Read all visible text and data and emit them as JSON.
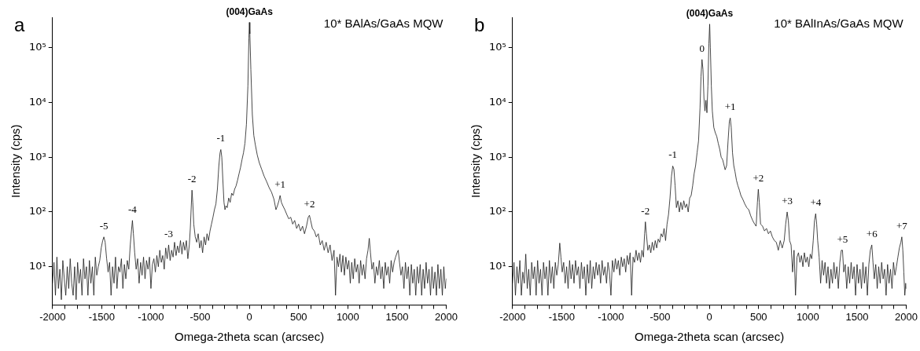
{
  "chart_data": [
    {
      "type": "line",
      "title": "a",
      "subtitle": "10* BAlAs/GaAs MQW",
      "xlabel": "Omega-2theta scan (arcsec)",
      "ylabel": "Intensity (cps)",
      "log": "y",
      "grid": false,
      "legend": false,
      "marker": "none",
      "line_style": "solid",
      "xlim": [
        -2000,
        2000
      ],
      "ylim": [
        2,
        360000
      ],
      "xticks": [
        -2000,
        {
          "value": -1875,
          "label": null
        },
        {
          "value": -1750,
          "label": null
        },
        {
          "value": -1625,
          "label": null
        },
        -1500,
        {
          "value": -1375,
          "label": null
        },
        {
          "value": -1250,
          "label": null
        },
        {
          "value": -1125,
          "label": null
        },
        -1000,
        {
          "value": -875,
          "label": null
        },
        {
          "value": -750,
          "label": null
        },
        {
          "value": -625,
          "label": null
        },
        -500,
        {
          "value": -375,
          "label": null
        },
        {
          "value": -250,
          "label": null
        },
        {
          "value": -125,
          "label": null
        },
        0,
        {
          "value": 125,
          "label": null
        },
        {
          "value": 250,
          "label": null
        },
        {
          "value": 375,
          "label": null
        },
        500,
        {
          "value": 625,
          "label": null
        },
        {
          "value": 750,
          "label": null
        },
        {
          "value": 875,
          "label": null
        },
        1000,
        {
          "value": 1125,
          "label": null
        },
        {
          "value": 1250,
          "label": null
        },
        {
          "value": 1375,
          "label": null
        },
        1500,
        {
          "value": 1625,
          "label": null
        },
        {
          "value": 1750,
          "label": null
        },
        {
          "value": 1875,
          "label": null
        },
        2000
      ],
      "yticks": [
        {
          "value": 10,
          "label": "10¹"
        },
        {
          "value": 100,
          "label": "10²"
        },
        {
          "value": 1000,
          "label": "10³"
        },
        {
          "value": 10000,
          "label": "10⁴"
        },
        {
          "value": 100000,
          "label": "10⁵"
        }
      ],
      "annotations": [
        {
          "text": "(004)GaAs",
          "x": 0,
          "y": 290000
        },
        {
          "text": "-1",
          "x": -290,
          "y": 1380
        },
        {
          "text": "-2",
          "x": -583,
          "y": 250
        },
        {
          "text": "-3",
          "x": -820,
          "y": 25
        },
        {
          "text": "-4",
          "x": -1188,
          "y": 70
        },
        {
          "text": "-5",
          "x": -1478,
          "y": 35
        },
        {
          "text": "+1",
          "x": 312,
          "y": 200
        },
        {
          "text": "+2",
          "x": 610,
          "y": 87
        }
      ],
      "series": [
        {
          "color": "#1a1a1a",
          "x": [
            -2000,
            -1985,
            -1970,
            -1955,
            -1940,
            -1925,
            -1910,
            -1895,
            -1880,
            -1865,
            -1850,
            -1835,
            -1820,
            -1805,
            -1790,
            -1775,
            -1760,
            -1745,
            -1730,
            -1715,
            -1700,
            -1685,
            -1670,
            -1655,
            -1640,
            -1625,
            -1610,
            -1595,
            -1580,
            -1565,
            -1550,
            -1535,
            -1520,
            -1505,
            -1490,
            -1478,
            -1465,
            -1450,
            -1435,
            -1420,
            -1405,
            -1390,
            -1375,
            -1360,
            -1345,
            -1330,
            -1315,
            -1300,
            -1285,
            -1270,
            -1255,
            -1240,
            -1225,
            -1210,
            -1198,
            -1188,
            -1178,
            -1165,
            -1150,
            -1135,
            -1120,
            -1105,
            -1090,
            -1075,
            -1060,
            -1045,
            -1030,
            -1015,
            -1000,
            -985,
            -970,
            -955,
            -940,
            -925,
            -910,
            -895,
            -880,
            -865,
            -850,
            -835,
            -820,
            -805,
            -790,
            -775,
            -760,
            -745,
            -730,
            -715,
            -700,
            -685,
            -670,
            -655,
            -640,
            -625,
            -610,
            -600,
            -590,
            -583,
            -575,
            -565,
            -550,
            -535,
            -520,
            -505,
            -490,
            -475,
            -460,
            -445,
            -430,
            -415,
            -400,
            -385,
            -370,
            -355,
            -340,
            -325,
            -310,
            -298,
            -290,
            -280,
            -270,
            -258,
            -248,
            -238,
            -225,
            -210,
            -195,
            -180,
            -165,
            -150,
            -135,
            -120,
            -105,
            -90,
            -75,
            -60,
            -45,
            -30,
            -15,
            -5,
            0,
            5,
            15,
            30,
            45,
            60,
            80,
            100,
            125,
            150,
            175,
            200,
            225,
            250,
            270,
            285,
            300,
            312,
            325,
            340,
            360,
            380,
            400,
            420,
            440,
            460,
            480,
            500,
            520,
            540,
            560,
            580,
            598,
            610,
            622,
            640,
            660,
            680,
            700,
            720,
            740,
            760,
            780,
            800,
            820,
            840,
            860,
            875,
            890,
            905,
            920,
            935,
            950,
            965,
            980,
            995,
            1010,
            1025,
            1040,
            1055,
            1070,
            1085,
            1100,
            1115,
            1130,
            1145,
            1160,
            1175,
            1190,
            1205,
            1218,
            1230,
            1245,
            1260,
            1275,
            1290,
            1305,
            1320,
            1335,
            1350,
            1365,
            1380,
            1395,
            1410,
            1425,
            1440,
            1455,
            1470,
            1485,
            1500,
            1512,
            1525,
            1540,
            1555,
            1570,
            1585,
            1600,
            1615,
            1630,
            1645,
            1660,
            1675,
            1690,
            1705,
            1720,
            1735,
            1750,
            1765,
            1780,
            1795,
            1810,
            1825,
            1840,
            1855,
            1870,
            1885,
            1900,
            1915,
            1930,
            1945,
            1960,
            1975,
            1990,
            2000
          ],
          "values": [
            5,
            12,
            3,
            15,
            4,
            9,
            2.5,
            13,
            6,
            3,
            10,
            4,
            14,
            5,
            3,
            10,
            2.5,
            12,
            5,
            9,
            3,
            14,
            6,
            10,
            3,
            13,
            5,
            10,
            3,
            15,
            7,
            10,
            13,
            22,
            30,
            35,
            28,
            14,
            8,
            12,
            3,
            10,
            5,
            15,
            4,
            10,
            8,
            14,
            4,
            11,
            6,
            13,
            9,
            25,
            45,
            70,
            40,
            18,
            9,
            14,
            5,
            12,
            7,
            15,
            6,
            13,
            9,
            15,
            4,
            11,
            14,
            8,
            16,
            10,
            20,
            12,
            16,
            9,
            22,
            14,
            25,
            13,
            20,
            15,
            28,
            16,
            24,
            18,
            30,
            17,
            28,
            20,
            30,
            14,
            25,
            50,
            130,
            250,
            150,
            60,
            35,
            28,
            40,
            22,
            30,
            18,
            35,
            25,
            40,
            30,
            45,
            60,
            80,
            110,
            140,
            260,
            700,
            1200,
            1380,
            1000,
            400,
            150,
            110,
            130,
            120,
            180,
            150,
            220,
            200,
            260,
            300,
            380,
            500,
            650,
            900,
            1200,
            1800,
            4000,
            20000,
            150000,
            290000,
            180000,
            40000,
            6000,
            2500,
            1700,
            1100,
            800,
            600,
            450,
            360,
            280,
            230,
            170,
            110,
            130,
            160,
            200,
            150,
            130,
            110,
            90,
            75,
            80,
            60,
            70,
            50,
            60,
            45,
            55,
            40,
            55,
            80,
            87,
            70,
            50,
            45,
            35,
            40,
            25,
            30,
            20,
            28,
            18,
            25,
            13,
            20,
            3,
            15,
            10,
            17,
            8,
            16,
            7,
            15,
            9,
            13,
            5,
            12,
            6,
            14,
            8,
            11,
            5,
            13,
            7,
            11,
            6,
            14,
            20,
            33,
            18,
            9,
            12,
            5,
            10,
            7,
            13,
            6,
            10,
            4,
            12,
            7,
            10,
            5,
            13,
            8,
            12,
            15,
            18,
            20,
            12,
            7,
            10,
            4,
            12,
            6,
            10,
            3,
            11,
            5,
            9,
            3,
            10,
            5,
            11,
            3,
            9,
            4,
            12,
            5,
            9,
            3,
            10,
            4,
            8,
            3,
            11,
            4,
            9,
            3,
            10,
            4,
            6
          ]
        }
      ]
    },
    {
      "type": "line",
      "title": "b",
      "subtitle": "10* BAlInAs/GaAs MQW",
      "xlabel": "Omega-2theta scan (arcsec)",
      "ylabel": "Intensity (cps)",
      "log": "y",
      "grid": false,
      "legend": false,
      "marker": "none",
      "line_style": "solid",
      "xlim": [
        -2000,
        2000
      ],
      "ylim": [
        2,
        360000
      ],
      "xticks": [
        -2000,
        {
          "value": -1875,
          "label": null
        },
        {
          "value": -1750,
          "label": null
        },
        {
          "value": -1625,
          "label": null
        },
        -1500,
        {
          "value": -1375,
          "label": null
        },
        {
          "value": -1250,
          "label": null
        },
        {
          "value": -1125,
          "label": null
        },
        -1000,
        {
          "value": -875,
          "label": null
        },
        {
          "value": -750,
          "label": null
        },
        {
          "value": -625,
          "label": null
        },
        -500,
        {
          "value": -375,
          "label": null
        },
        {
          "value": -250,
          "label": null
        },
        {
          "value": -125,
          "label": null
        },
        0,
        {
          "value": 125,
          "label": null
        },
        {
          "value": 250,
          "label": null
        },
        {
          "value": 375,
          "label": null
        },
        500,
        {
          "value": 625,
          "label": null
        },
        {
          "value": 750,
          "label": null
        },
        {
          "value": 875,
          "label": null
        },
        1000,
        {
          "value": 1125,
          "label": null
        },
        {
          "value": 1250,
          "label": null
        },
        {
          "value": 1375,
          "label": null
        },
        1500,
        {
          "value": 1625,
          "label": null
        },
        {
          "value": 1750,
          "label": null
        },
        {
          "value": 1875,
          "label": null
        },
        2000
      ],
      "yticks": [
        {
          "value": 10,
          "label": "10¹"
        },
        {
          "value": 100,
          "label": "10²"
        },
        {
          "value": 1000,
          "label": "10³"
        },
        {
          "value": 10000,
          "label": "10⁴"
        },
        {
          "value": 100000,
          "label": "10⁵"
        }
      ],
      "annotations": [
        {
          "text": "(004)GaAs",
          "x": 3,
          "y": 270000
        },
        {
          "text": "0",
          "x": -75,
          "y": 61000
        },
        {
          "text": "+1",
          "x": 212,
          "y": 5200
        },
        {
          "text": "-1",
          "x": -372,
          "y": 690
        },
        {
          "text": "-2",
          "x": -650,
          "y": 66
        },
        {
          "text": "+2",
          "x": 497,
          "y": 260
        },
        {
          "text": "+3",
          "x": 790,
          "y": 100
        },
        {
          "text": "+4",
          "x": 1080,
          "y": 93
        },
        {
          "text": "+5",
          "x": 1352,
          "y": 20
        },
        {
          "text": "+6",
          "x": 1650,
          "y": 25
        },
        {
          "text": "+7",
          "x": 1955,
          "y": 35
        }
      ],
      "series": [
        {
          "color": "#1a1a1a",
          "x": [
            -2000,
            -1985,
            -1970,
            -1955,
            -1940,
            -1925,
            -1910,
            -1895,
            -1880,
            -1865,
            -1850,
            -1835,
            -1820,
            -1805,
            -1790,
            -1775,
            -1760,
            -1745,
            -1730,
            -1715,
            -1700,
            -1685,
            -1670,
            -1655,
            -1640,
            -1625,
            -1610,
            -1595,
            -1580,
            -1565,
            -1550,
            -1535,
            -1520,
            -1508,
            -1495,
            -1480,
            -1465,
            -1450,
            -1435,
            -1420,
            -1405,
            -1390,
            -1375,
            -1360,
            -1345,
            -1330,
            -1315,
            -1300,
            -1285,
            -1270,
            -1255,
            -1240,
            -1225,
            -1210,
            -1195,
            -1180,
            -1165,
            -1150,
            -1135,
            -1120,
            -1105,
            -1090,
            -1075,
            -1060,
            -1045,
            -1030,
            -1015,
            -1000,
            -985,
            -970,
            -955,
            -940,
            -925,
            -910,
            -895,
            -880,
            -865,
            -850,
            -835,
            -820,
            -805,
            -790,
            -775,
            -760,
            -745,
            -730,
            -715,
            -700,
            -685,
            -670,
            -658,
            -650,
            -640,
            -625,
            -610,
            -595,
            -580,
            -565,
            -550,
            -535,
            -520,
            -505,
            -490,
            -475,
            -460,
            -445,
            -430,
            -415,
            -400,
            -385,
            -372,
            -360,
            -348,
            -335,
            -320,
            -305,
            -290,
            -275,
            -260,
            -245,
            -230,
            -215,
            -200,
            -185,
            -170,
            -155,
            -140,
            -125,
            -110,
            -95,
            -85,
            -75,
            -65,
            -55,
            -45,
            -35,
            -25,
            -15,
            -5,
            3,
            10,
            20,
            30,
            45,
            60,
            75,
            90,
            105,
            120,
            135,
            150,
            160,
            175,
            190,
            203,
            212,
            222,
            235,
            248,
            260,
            275,
            290,
            305,
            320,
            340,
            360,
            380,
            400,
            420,
            440,
            460,
            475,
            488,
            497,
            507,
            520,
            540,
            560,
            580,
            600,
            620,
            640,
            660,
            680,
            700,
            720,
            740,
            760,
            775,
            790,
            802,
            815,
            830,
            845,
            860,
            875,
            890,
            905,
            920,
            935,
            950,
            965,
            980,
            995,
            1010,
            1025,
            1040,
            1055,
            1068,
            1080,
            1090,
            1100,
            1115,
            1130,
            1145,
            1160,
            1175,
            1190,
            1205,
            1220,
            1235,
            1250,
            1265,
            1280,
            1295,
            1310,
            1325,
            1340,
            1352,
            1365,
            1380,
            1395,
            1410,
            1425,
            1440,
            1455,
            1470,
            1485,
            1500,
            1515,
            1530,
            1545,
            1560,
            1575,
            1590,
            1605,
            1620,
            1635,
            1650,
            1662,
            1675,
            1690,
            1705,
            1720,
            1735,
            1750,
            1765,
            1780,
            1795,
            1810,
            1825,
            1840,
            1855,
            1870,
            1885,
            1900,
            1915,
            1930,
            1945,
            1955,
            1965,
            1975,
            1985,
            1995,
            2000
          ],
          "values": [
            5,
            12,
            3,
            10,
            5,
            13,
            3,
            8,
            5,
            17,
            4,
            9,
            3,
            12,
            6,
            10,
            3,
            13,
            5,
            9,
            3,
            12,
            6,
            10,
            3,
            13,
            5,
            10,
            4,
            12,
            7,
            11,
            27,
            15,
            8,
            12,
            5,
            10,
            4,
            13,
            6,
            11,
            5,
            13,
            7,
            10,
            4,
            12,
            6,
            10,
            3,
            11,
            5,
            13,
            4,
            10,
            6,
            12,
            7,
            11,
            5,
            13,
            7,
            10,
            5,
            12,
            8,
            3,
            13,
            8,
            14,
            9,
            13,
            7,
            15,
            10,
            14,
            8,
            16,
            11,
            18,
            3,
            15,
            12,
            20,
            13,
            18,
            12,
            20,
            15,
            40,
            66,
            40,
            20,
            25,
            18,
            28,
            20,
            30,
            22,
            32,
            28,
            40,
            35,
            50,
            30,
            60,
            90,
            180,
            450,
            690,
            600,
            300,
            120,
            160,
            100,
            150,
            110,
            160,
            120,
            140,
            100,
            180,
            200,
            300,
            500,
            700,
            1200,
            2000,
            8000,
            30000,
            61000,
            40000,
            12000,
            7000,
            11000,
            6500,
            20000,
            120000,
            270000,
            100000,
            20000,
            7000,
            3500,
            2800,
            2400,
            1800,
            1400,
            1000,
            900,
            700,
            590,
            700,
            2000,
            4500,
            5200,
            3500,
            1200,
            700,
            550,
            380,
            300,
            250,
            200,
            170,
            140,
            120,
            110,
            85,
            70,
            60,
            55,
            150,
            260,
            150,
            60,
            55,
            45,
            50,
            40,
            45,
            35,
            30,
            28,
            20,
            30,
            22,
            30,
            60,
            100,
            70,
            30,
            25,
            8,
            20,
            3,
            15,
            18,
            12,
            16,
            10,
            18,
            12,
            15,
            10,
            17,
            14,
            30,
            70,
            93,
            60,
            30,
            15,
            5,
            13,
            7,
            12,
            5,
            10,
            4,
            9,
            5,
            12,
            6,
            10,
            4,
            12,
            20,
            20,
            8,
            11,
            4,
            10,
            5,
            12,
            6,
            10,
            3,
            11,
            5,
            9,
            4,
            12,
            5,
            10,
            3,
            11,
            20,
            25,
            12,
            6,
            11,
            4,
            10,
            5,
            12,
            6,
            9,
            3,
            11,
            5,
            9,
            4,
            12,
            7,
            10,
            15,
            22,
            28,
            35,
            20,
            8,
            3,
            5,
            4
          ]
        }
      ]
    }
  ]
}
